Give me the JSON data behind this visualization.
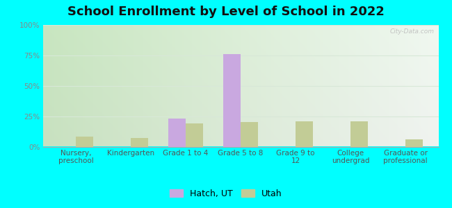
{
  "title": "School Enrollment by Level of School in 2022",
  "categories": [
    "Nursery,\npreschool",
    "Kindergarten",
    "Grade 1 to 4",
    "Grade 5 to 8",
    "Grade 9 to\n12",
    "College\nundergrad",
    "Graduate or\nprofessional"
  ],
  "hatch_values": [
    0,
    0,
    23,
    76,
    0,
    0,
    0
  ],
  "utah_values": [
    8,
    7,
    19,
    20,
    21,
    21,
    6
  ],
  "hatch_color": "#c9a8e0",
  "utah_color": "#c2cc96",
  "bar_width": 0.32,
  "ylim": [
    0,
    100
  ],
  "yticks": [
    0,
    25,
    50,
    75,
    100
  ],
  "ytick_labels": [
    "0%",
    "25%",
    "50%",
    "75%",
    "100%"
  ],
  "legend_labels": [
    "Hatch, UT",
    "Utah"
  ],
  "fig_bg_color": "#00ffff",
  "bg_color_left": "#c8e6c0",
  "bg_color_right": "#f0f8f0",
  "bg_color_top": "#f5faf5",
  "title_fontsize": 13,
  "tick_fontsize": 7.5,
  "legend_fontsize": 9,
  "watermark": "City-Data.com"
}
